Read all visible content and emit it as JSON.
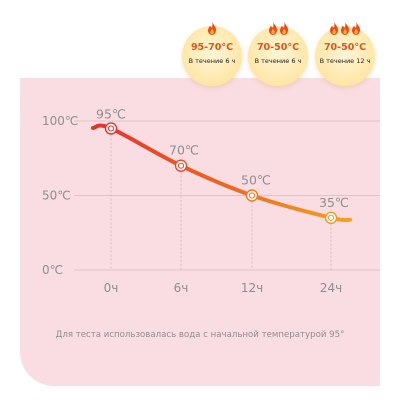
{
  "badges": [
    {
      "temp": "95-70°C",
      "duration": "В течение 6 ч",
      "flames": 1
    },
    {
      "temp": "70-50°C",
      "duration": "В течение 6 ч",
      "flames": 2
    },
    {
      "temp": "70-50°C",
      "duration": "В течение 12 ч",
      "flames": 3
    }
  ],
  "colors": {
    "panel": "#f9dde2",
    "line_start": "#e8302a",
    "line_end": "#f5a31a",
    "badge_text": "#e8531c"
  },
  "caption": "Для теста использовалась вода с начальной температурой 95°",
  "chart_data": {
    "type": "line",
    "title": "",
    "xlabel": "",
    "ylabel": "",
    "x": [
      "0ч",
      "6ч",
      "12ч",
      "24ч"
    ],
    "y_ticks": [
      "0℃",
      "50℃",
      "100℃"
    ],
    "ylim": [
      0,
      100
    ],
    "grid": true,
    "series": [
      {
        "values": [
          95,
          70,
          50,
          35
        ],
        "labels": [
          "95℃",
          "70℃",
          "50℃",
          "35℃"
        ]
      }
    ]
  }
}
